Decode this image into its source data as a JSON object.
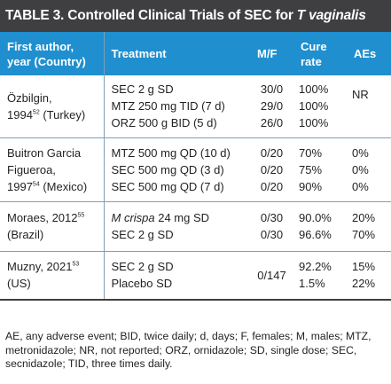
{
  "title": {
    "prefix": "TABLE 3. Controlled Clinical Trials of SEC for ",
    "italic": "T vaginalis"
  },
  "headers": {
    "author": [
      "First author,",
      "year (Country)"
    ],
    "treatment": "Treatment",
    "mf": "M/F",
    "cure": [
      "Cure",
      "rate"
    ],
    "aes": "AEs"
  },
  "rows": [
    {
      "author": [
        "Özbilgin,",
        "1994",
        "52",
        " (Turkey)"
      ],
      "treatments": [
        "SEC 2 g SD",
        "MTZ 250 mg TID (7 d)",
        "ORZ 500 g BID (5 d)"
      ],
      "mf": [
        "30/0",
        "29/0",
        "26/0"
      ],
      "cure": [
        "100%",
        "100%",
        "100%"
      ],
      "aes": [
        "NR"
      ]
    },
    {
      "author": [
        "Buitron Garcia",
        "Figueroa,",
        "1997",
        "54",
        " (Mexico)"
      ],
      "treatments": [
        "MTZ 500 mg QD (10 d)",
        "SEC 500 mg QD (3 d)",
        "SEC 500 mg QD (7 d)"
      ],
      "mf": [
        "0/20",
        "0/20",
        "0/20"
      ],
      "cure": [
        "70%",
        "75%",
        "90%"
      ],
      "aes": [
        "0%",
        "0%",
        "0%"
      ]
    },
    {
      "author": [
        "Moraes, 2012",
        "55",
        "(Brazil)"
      ],
      "treatments": [
        "M crispa",
        " 24 mg SD",
        "SEC 2 g SD"
      ],
      "mf": [
        "0/30",
        "0/30"
      ],
      "cure": [
        "90.0%",
        "96.6%"
      ],
      "aes": [
        "20%",
        "70%"
      ]
    },
    {
      "author": [
        "Muzny, 2021",
        "53",
        "(US)"
      ],
      "treatments": [
        "SEC 2 g SD",
        "Placebo SD"
      ],
      "mf": [
        "0/147"
      ],
      "cure": [
        "92.2%",
        "1.5%"
      ],
      "aes": [
        "15%",
        "22%"
      ]
    }
  ],
  "footnote": "AE, any adverse event; BID, twice daily; d, days; F, females; M, males; MTZ, metronidazole; NR, not reported; ORZ, ornidazole; SD, single dose; SEC, secnidazole; TID, three times daily."
}
